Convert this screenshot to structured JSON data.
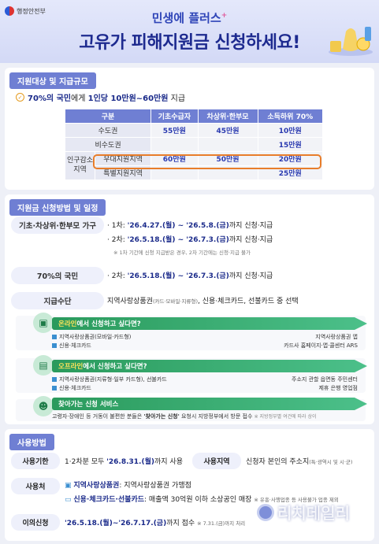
{
  "header": {
    "gov_name": "행정안전부",
    "subtitle": "민생에 플러스",
    "subtitle_mark": "+",
    "title": "고유가 피해지원금 신청하세요!"
  },
  "section1": {
    "heading": "지원대상 및 지급규모",
    "target_pre": "70%의 국민",
    "target_mid": "에게 ",
    "target_amount": "1인당 10만원~60만원",
    "target_post": " 지급",
    "table": {
      "headers": [
        "구분",
        "기초수급자",
        "차상위·한부모",
        "소득하위 70%"
      ],
      "rows": [
        {
          "label": "수도권",
          "v1": "55만원",
          "v2": "45만원",
          "v3": "10만원"
        },
        {
          "label": "비수도권",
          "v1": "",
          "v2": "",
          "v3": "15만원"
        },
        {
          "group": "인구감소 지역",
          "label": "우대지원지역",
          "v1": "60만원",
          "v2": "50만원",
          "v3": "20만원"
        },
        {
          "label": "특별지원지역",
          "v1": "",
          "v2": "",
          "v3": "25만원"
        }
      ]
    }
  },
  "section2": {
    "heading": "지원금 신청방법 및 일정",
    "basic_label": "기초·차상위·한부모 가구",
    "round1_pre": "· 1차: ",
    "round1_date": "'26.4.27.(월) ~ '26.5.8.(금)",
    "round1_post": "까지 신청·지급",
    "round2_pre": "· 2차: ",
    "round2_date": "'26.5.18.(월) ~ '26.7.3.(금)",
    "round2_post": "까지 신청·지급",
    "note1": "※ 1차 기간에 신청 지급받은 경우, 2차 기간에는 신청·지급 불가",
    "general_label": "70%의 국민",
    "general_pre": "· 2차: ",
    "general_date": "'26.5.18.(월) ~ '26.7.3.(금)",
    "general_post": "까지 신청·지급",
    "means_label": "지급수단",
    "means_text_a": "지역사랑상품권",
    "means_text_small": "(카드·모바일·지류형)",
    "means_text_b": ", 신용·체크카드, 선불카드 중 선택",
    "online": {
      "title_em": "온라인",
      "title_rest": "에서 신청하고 싶다면?",
      "row1_left": "지역사랑상품권(모바일·카드형)",
      "row1_right": "지역사랑상품권 앱",
      "row2_left": "신용·체크카드",
      "row2_right": "카드사 홈페이지·앱·콜센터 ARS"
    },
    "offline": {
      "title_em": "오프라인",
      "title_rest": "에서 신청하고 싶다면?",
      "row1_left": "지역사랑상품권(지류형·일부 카드형), 선불카드",
      "row1_right": "주소지 관할 읍면동 주민센터",
      "row2_left": "신용·체크카드",
      "row2_right": "제휴 은행 영업점"
    },
    "visit": {
      "title": "찾아가는 신청 서비스",
      "desc_a": "고령자·장애인 등 거동이 불편한 분들은 ",
      "desc_b": "'찾아가는 신청'",
      "desc_c": " 요청시 지방정부에서 방문 접수",
      "desc_note": "※ 지방정부별 여건에 따라 상이"
    }
  },
  "section3": {
    "heading": "사용방법",
    "period_label": "사용기한",
    "period_pre": "1·2차분 모두 ",
    "period_date": "'26.8.31.(월)",
    "period_post": "까지 사용",
    "region_label": "사용지역",
    "region_text": "신청자 본인의 주소지",
    "region_small": "(특·광역시 및 시·군)",
    "place_label": "사용처",
    "place1_b": "지역사랑상품권",
    "place1_rest": ": 지역사랑상품권 가맹점",
    "place2_b": "신용·체크카드·선불카드",
    "place2_rest": ": 매출액 30억원 이하 소상공인 매장",
    "place2_note": "※ 유흥·사행업종 등 사용불가 업종 제외",
    "appeal_label": "이의신청",
    "appeal_date": "'26.5.18.(월)~'26.7.17.(금)",
    "appeal_post": "까지 접수",
    "appeal_note": "※ 7.31.(금)까지 처리"
  },
  "watermark": "리치데일리"
}
